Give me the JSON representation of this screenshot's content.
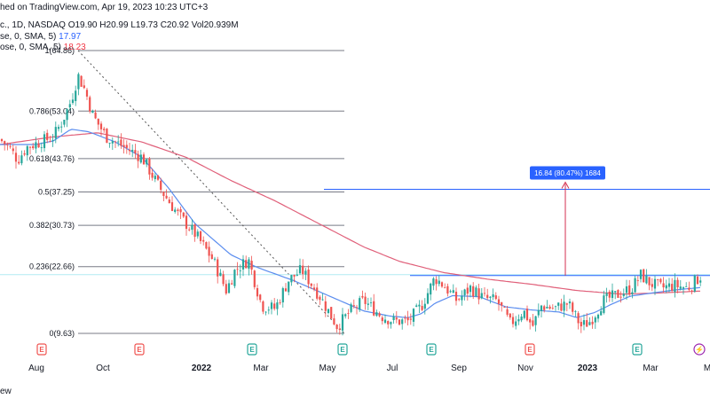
{
  "header": {
    "published": "hed on TradingView.com, Apr 19, 2023 10:23 UTC+3",
    "symbol_prefix": "c., 1D, NASDAQ",
    "open": "O19.90",
    "high": "H20.99",
    "low": "L19.73",
    "close": "C20.92",
    "volume": "Vol20.939M",
    "ma1_label": "se, 0, SMA, 5)",
    "ma1_value": "17.97",
    "ma2_label": "ose, 0, SMA, 5)",
    "ma2_value": "18.23"
  },
  "footer": {
    "text": "ew"
  },
  "measure": {
    "label": "16.84 (80.47%) 1684"
  },
  "colors": {
    "up": "#26a69a",
    "down": "#ef5350",
    "fib": "#787b86",
    "ma_fast": "#5b8def",
    "ma_slow": "#e0607a",
    "blue_line": "#2962ff",
    "measure_box": "#2962ff",
    "measure_arrow": "#d32f4f",
    "earnings": "#26a69a",
    "dividend": "#ef5350",
    "split": "#9c27b0"
  },
  "chart_data": {
    "type": "candlestick",
    "ylim": [
      9.63,
      64.86
    ],
    "fib_levels": [
      {
        "ratio": "1",
        "price": 64.86,
        "label": "1(64.86)"
      },
      {
        "ratio": "0.786",
        "price": 53.04,
        "label": "0.786(53.04)"
      },
      {
        "ratio": "0.618",
        "price": 43.76,
        "label": "0.618(43.76)"
      },
      {
        "ratio": "0.5",
        "price": 37.25,
        "label": "0.5(37.25)"
      },
      {
        "ratio": "0.382",
        "price": 30.73,
        "label": "0.382(30.73)"
      },
      {
        "ratio": "0.236",
        "price": 22.66,
        "label": "0.236(22.66)"
      },
      {
        "ratio": "0",
        "price": 9.63,
        "label": "0(9.63)"
      }
    ],
    "resistance_price": 20.93,
    "target_price": 37.77,
    "measure_label": "16.84 (80.47%) 1684",
    "x_labels": [
      {
        "label": "Aug",
        "bold": false
      },
      {
        "label": "Oct",
        "bold": false
      },
      {
        "label": "2022",
        "bold": true
      },
      {
        "label": "Mar",
        "bold": false
      },
      {
        "label": "May",
        "bold": false
      },
      {
        "label": "Jul",
        "bold": false
      },
      {
        "label": "Sep",
        "bold": false
      },
      {
        "label": "Nov",
        "bold": false
      },
      {
        "label": "2023",
        "bold": true
      },
      {
        "label": "Mar",
        "bold": false
      },
      {
        "label": "M",
        "bold": false
      }
    ],
    "events": [
      {
        "type": "dividend",
        "label": "E"
      },
      {
        "type": "dividend",
        "label": "E"
      },
      {
        "type": "earnings",
        "label": "E"
      },
      {
        "type": "earnings",
        "label": "E"
      },
      {
        "type": "earnings",
        "label": "E"
      },
      {
        "type": "dividend",
        "label": "E"
      },
      {
        "type": "earnings",
        "label": "E"
      },
      {
        "type": "split",
        "label": "⚡"
      }
    ],
    "series": [
      {
        "name": "price",
        "keypoints": [
          [
            0,
            47.5
          ],
          [
            10,
            46.0
          ],
          [
            20,
            43.5
          ],
          [
            30,
            46.0
          ],
          [
            45,
            47.0
          ],
          [
            60,
            48.0
          ],
          [
            70,
            51.0
          ],
          [
            80,
            55.0
          ],
          [
            88,
            60.0
          ],
          [
            96,
            57.0
          ],
          [
            105,
            52.0
          ],
          [
            120,
            48.0
          ],
          [
            140,
            46.0
          ],
          [
            160,
            44.0
          ],
          [
            180,
            38.0
          ],
          [
            200,
            33.0
          ],
          [
            220,
            29.0
          ],
          [
            240,
            24.0
          ],
          [
            255,
            18.0
          ],
          [
            265,
            22.0
          ],
          [
            280,
            24.0
          ],
          [
            295,
            15.0
          ],
          [
            310,
            14.5
          ],
          [
            325,
            20.0
          ],
          [
            340,
            22.0
          ],
          [
            360,
            17.0
          ],
          [
            380,
            11.0
          ],
          [
            395,
            14.0
          ],
          [
            410,
            16.0
          ],
          [
            430,
            13.0
          ],
          [
            445,
            12.0
          ],
          [
            460,
            12.0
          ],
          [
            475,
            15.0
          ],
          [
            490,
            20.5
          ],
          [
            500,
            19.0
          ],
          [
            515,
            16.0
          ],
          [
            530,
            18.5
          ],
          [
            545,
            16.5
          ],
          [
            560,
            16.0
          ],
          [
            575,
            11.5
          ],
          [
            590,
            14.0
          ],
          [
            600,
            11.0
          ],
          [
            610,
            15.0
          ],
          [
            625,
            14.5
          ],
          [
            640,
            15.5
          ],
          [
            655,
            11.0
          ],
          [
            665,
            12.0
          ],
          [
            680,
            16.0
          ],
          [
            700,
            17.5
          ],
          [
            712,
            18.5
          ],
          [
            722,
            21.0
          ],
          [
            732,
            19.5
          ],
          [
            745,
            18.5
          ],
          [
            760,
            19.0
          ],
          [
            775,
            18.5
          ],
          [
            790,
            20.9
          ]
        ]
      },
      {
        "name": "ma_fast",
        "keypoints": [
          [
            0,
            46.5
          ],
          [
            40,
            46.5
          ],
          [
            60,
            47.2
          ],
          [
            80,
            49.5
          ],
          [
            100,
            49.0
          ],
          [
            130,
            47.0
          ],
          [
            160,
            44.0
          ],
          [
            190,
            38.0
          ],
          [
            220,
            31.0
          ],
          [
            260,
            25.0
          ],
          [
            290,
            22.5
          ],
          [
            330,
            20.0
          ],
          [
            370,
            17.0
          ],
          [
            410,
            14.0
          ],
          [
            440,
            13.0
          ],
          [
            460,
            12.7
          ],
          [
            475,
            13.5
          ],
          [
            490,
            15.5
          ],
          [
            510,
            17.0
          ],
          [
            540,
            16.8
          ],
          [
            570,
            14.8
          ],
          [
            600,
            14.2
          ],
          [
            630,
            13.8
          ],
          [
            650,
            12.7
          ],
          [
            670,
            13.7
          ],
          [
            690,
            15.4
          ],
          [
            710,
            16.9
          ],
          [
            730,
            17.4
          ],
          [
            760,
            18.1
          ],
          [
            790,
            18.6
          ]
        ]
      },
      {
        "name": "ma_slow",
        "keypoints": [
          [
            0,
            46.5
          ],
          [
            60,
            48.0
          ],
          [
            110,
            48.8
          ],
          [
            160,
            47.0
          ],
          [
            210,
            44.0
          ],
          [
            260,
            39.5
          ],
          [
            310,
            35.5
          ],
          [
            360,
            31.0
          ],
          [
            410,
            26.5
          ],
          [
            450,
            23.7
          ],
          [
            500,
            21.5
          ],
          [
            550,
            20.2
          ],
          [
            600,
            19.2
          ],
          [
            650,
            18.0
          ],
          [
            700,
            17.3
          ],
          [
            740,
            17.5
          ],
          [
            790,
            17.9
          ]
        ]
      }
    ]
  }
}
